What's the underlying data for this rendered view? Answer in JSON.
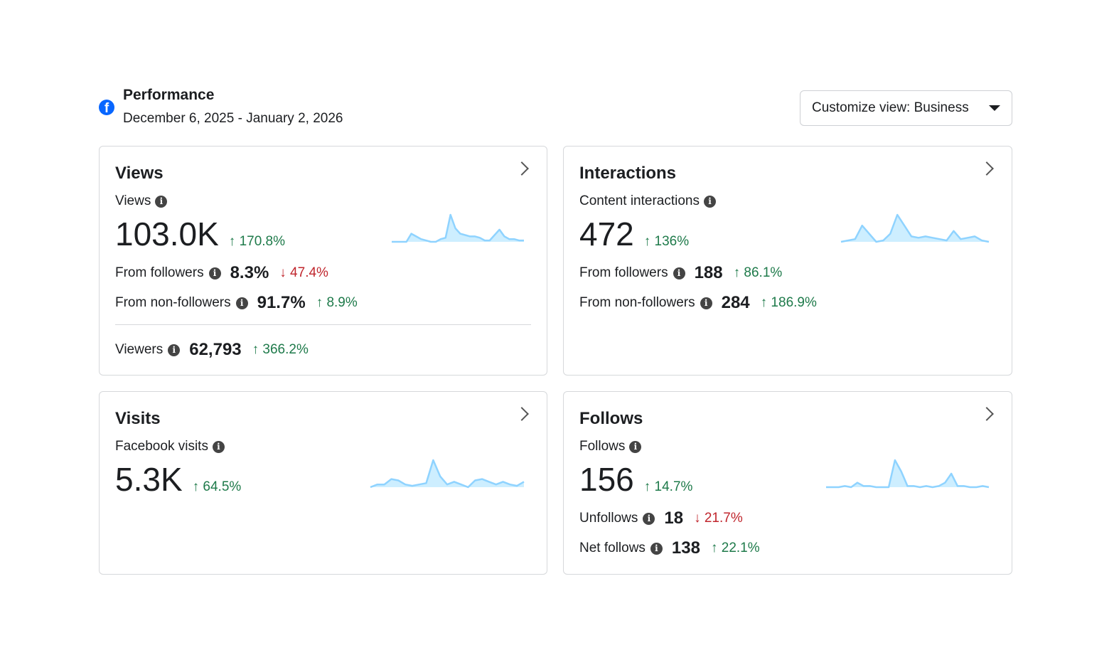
{
  "header": {
    "title": "Performance",
    "date_range": "December 6, 2025 - January 2, 2026",
    "customize_label": "Customize view: Business"
  },
  "colors": {
    "up": "#1e7a4a",
    "down": "#c0262d",
    "sparkline": "#8fd3ff",
    "brand": "#0866ff"
  },
  "cards": {
    "views": {
      "title": "Views",
      "metric_label": "Views",
      "value": "103.0K",
      "change": "↑ 170.8%",
      "rows": [
        {
          "label": "From followers",
          "value": "8.3%",
          "change": "↓ 47.4%"
        },
        {
          "label": "From non-followers",
          "value": "91.7%",
          "change": "↑ 8.9%"
        },
        {
          "label": "Viewers",
          "value": "62,793",
          "change": "↑ 366.2%"
        }
      ],
      "sparkline": [
        0,
        0,
        0,
        0,
        3,
        2,
        1,
        0.5,
        0,
        0,
        1,
        1.5,
        10,
        5,
        3,
        2.5,
        2,
        2,
        1.5,
        0.5,
        0.5,
        2.5,
        4.5,
        2,
        1,
        1,
        0.5,
        0.5
      ]
    },
    "interactions": {
      "title": "Interactions",
      "metric_label": "Content interactions",
      "value": "472",
      "change": "↑ 136%",
      "rows": [
        {
          "label": "From followers",
          "value": "188",
          "change": "↑ 86.1%"
        },
        {
          "label": "From non-followers",
          "value": "284",
          "change": "↑ 186.9%"
        }
      ],
      "sparkline": [
        0,
        0.5,
        1,
        6,
        3,
        0,
        0.5,
        3,
        10,
        6,
        2,
        1.5,
        2,
        1.5,
        1,
        0.5,
        4,
        1,
        1.5,
        2,
        0.5,
        0
      ]
    },
    "visits": {
      "title": "Visits",
      "metric_label": "Facebook visits",
      "value": "5.3K",
      "change": "↑ 64.5%",
      "sparkline": [
        0,
        1,
        1,
        3,
        2.5,
        1,
        0.5,
        1,
        1.5,
        10,
        4,
        1,
        2,
        1,
        0,
        2.5,
        3,
        2,
        1,
        2,
        1,
        0.5,
        2
      ]
    },
    "follows": {
      "title": "Follows",
      "metric_label": "Follows",
      "value": "156",
      "change": "↑ 14.7%",
      "rows": [
        {
          "label": "Unfollows",
          "value": "18",
          "change": "↓ 21.7%"
        },
        {
          "label": "Net follows",
          "value": "138",
          "change": "↑ 22.1%"
        }
      ],
      "sparkline": [
        0,
        0,
        0,
        0.5,
        0,
        2,
        0.5,
        0.5,
        0,
        0,
        0,
        12,
        7,
        0.5,
        0.5,
        0,
        0.5,
        0,
        0.5,
        2,
        6,
        0.5,
        0.5,
        0,
        0,
        0.5,
        0
      ]
    }
  }
}
